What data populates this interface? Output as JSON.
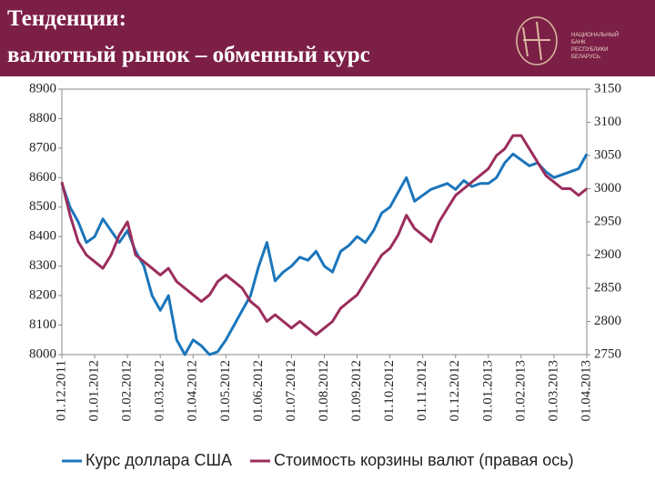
{
  "header": {
    "title_lines": [
      "Тенденции:",
      "валютный рынок – обменный курс"
    ],
    "logo_lines": [
      "НАЦИОНАЛЬНЫЙ",
      "БАНК",
      "РЕСПУБЛИКИ",
      "БЕЛАРУСЬ"
    ]
  },
  "chart_data": {
    "type": "line",
    "categories": [
      "01.12.2011",
      null,
      null,
      null,
      "01.01.2012",
      null,
      null,
      null,
      "01.02.2012",
      null,
      null,
      null,
      "01.03.2012",
      null,
      null,
      null,
      "01.04.2012",
      null,
      null,
      null,
      "01.05.2012",
      null,
      null,
      null,
      "01.06.2012",
      null,
      null,
      null,
      "01.07.2012",
      null,
      null,
      null,
      "01.08.2012",
      null,
      null,
      null,
      "01.09.2012",
      null,
      null,
      null,
      "01.10.2012",
      null,
      null,
      null,
      "01.11.2012",
      null,
      null,
      null,
      "01.12.2012",
      null,
      null,
      null,
      "01.01.2013",
      null,
      null,
      null,
      "01.02.2013",
      null,
      null,
      null,
      "01.03.2013",
      null,
      null,
      null,
      "01.04.2013"
    ],
    "series": [
      {
        "name": "Курс доллара США",
        "color": "#1b75bb",
        "values": [
          8580,
          8500,
          8450,
          8380,
          8400,
          8460,
          8420,
          8380,
          8420,
          8350,
          8300,
          8200,
          8150,
          8200,
          8050,
          8000,
          8050,
          8030,
          8000,
          8010,
          8050,
          8100,
          8150,
          8200,
          8300,
          8380,
          8250,
          8280,
          8300,
          8330,
          8320,
          8350,
          8300,
          8280,
          8350,
          8370,
          8400,
          8380,
          8420,
          8480,
          8500,
          8550,
          8600,
          8520,
          8540,
          8560,
          8570,
          8580,
          8560,
          8590,
          8570,
          8580,
          8580,
          8600,
          8650,
          8680,
          8660,
          8640,
          8650,
          8620,
          8600,
          8610,
          8620,
          8630,
          8680
        ]
      },
      {
        "name": "Стоимость корзины валют (правая ось)",
        "color": "#9b2d5c",
        "axis": "y2",
        "values": [
          3010,
          2960,
          2920,
          2900,
          2890,
          2880,
          2900,
          2930,
          2950,
          2900,
          2890,
          2880,
          2870,
          2880,
          2860,
          2850,
          2840,
          2830,
          2840,
          2860,
          2870,
          2860,
          2850,
          2830,
          2820,
          2800,
          2810,
          2800,
          2790,
          2800,
          2790,
          2780,
          2790,
          2800,
          2820,
          2830,
          2840,
          2860,
          2880,
          2900,
          2910,
          2930,
          2960,
          2940,
          2930,
          2920,
          2950,
          2970,
          2990,
          3000,
          3010,
          3020,
          3030,
          3050,
          3060,
          3080,
          3080,
          3060,
          3040,
          3020,
          3010,
          3000,
          3000,
          2990,
          3000
        ]
      }
    ],
    "ylim": [
      8000,
      8900
    ],
    "yticks": [
      8000,
      8100,
      8200,
      8300,
      8400,
      8500,
      8600,
      8700,
      8800,
      8900
    ],
    "y2lim": [
      2750,
      3150
    ],
    "y2ticks": [
      2750,
      2800,
      2850,
      2900,
      2950,
      3000,
      3050,
      3100,
      3150
    ],
    "grid": false,
    "legend": "bottom"
  }
}
